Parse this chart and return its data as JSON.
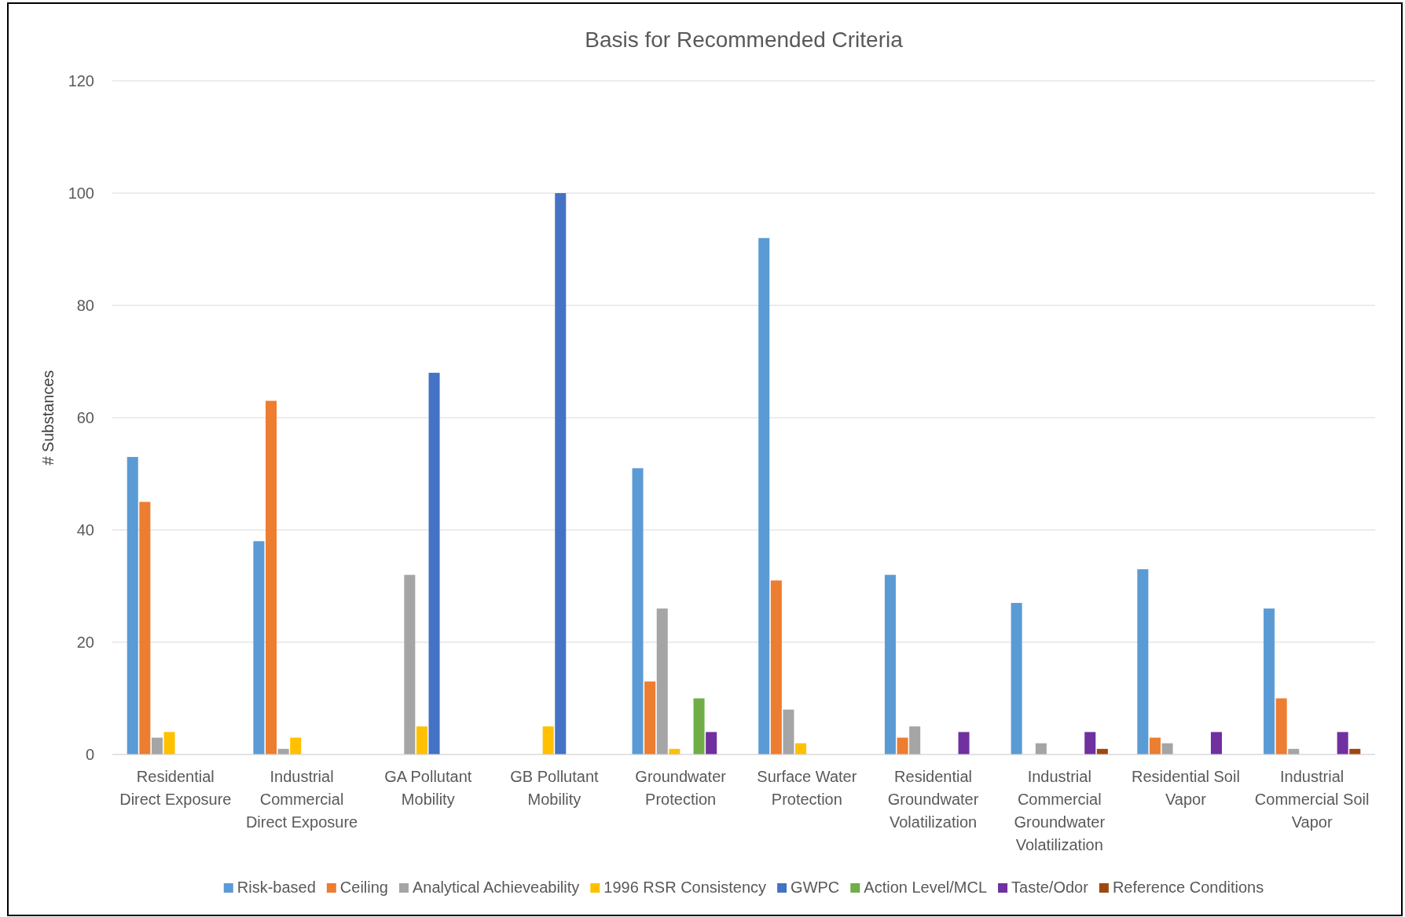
{
  "chart_data": {
    "type": "bar",
    "title": "Basis for Recommended Criteria",
    "ylabel": "# Substances",
    "categories": [
      "Residential Direct Exposure",
      "Industrial Commercial Direct Exposure",
      "GA Pollutant Mobility",
      "GB Pollutant Mobility",
      "Groundwater Protection",
      "Surface Water Protection",
      "Residential Groundwater Volatilization",
      "Industrial Commercial Groundwater Volatilization",
      "Residential Soil Vapor",
      "Industrial Commercial Soil Vapor"
    ],
    "series": [
      {
        "name": "Risk-based",
        "color": "#5b9bd5",
        "values": [
          53,
          38,
          null,
          null,
          51,
          92,
          32,
          27,
          33,
          26
        ]
      },
      {
        "name": "Ceiling",
        "color": "#ed7d31",
        "values": [
          45,
          63,
          null,
          null,
          13,
          31,
          3,
          null,
          3,
          10
        ]
      },
      {
        "name": "Analytical Achieveability",
        "color": "#a5a5a5",
        "values": [
          3,
          1,
          32,
          null,
          26,
          8,
          5,
          2,
          2,
          1
        ]
      },
      {
        "name": "1996 RSR Consistency",
        "color": "#ffc000",
        "values": [
          4,
          3,
          5,
          5,
          1,
          2,
          null,
          null,
          null,
          null
        ]
      },
      {
        "name": "GWPC",
        "color": "#4472c4",
        "values": [
          null,
          null,
          68,
          100,
          null,
          null,
          null,
          null,
          null,
          null
        ]
      },
      {
        "name": "Action Level/MCL",
        "color": "#70ad47",
        "values": [
          null,
          null,
          null,
          null,
          10,
          null,
          null,
          null,
          null,
          null
        ]
      },
      {
        "name": "Taste/Odor",
        "color": "#7030a0",
        "values": [
          null,
          null,
          null,
          null,
          4,
          null,
          4,
          4,
          4,
          4
        ]
      },
      {
        "name": "Reference Conditions",
        "color": "#9e480e",
        "values": [
          null,
          null,
          null,
          null,
          null,
          null,
          null,
          1,
          null,
          1
        ]
      }
    ],
    "ylim": [
      0,
      120
    ],
    "yticks": [
      0,
      20,
      40,
      60,
      80,
      100,
      120
    ],
    "grid": "y",
    "legend": "bottom"
  }
}
